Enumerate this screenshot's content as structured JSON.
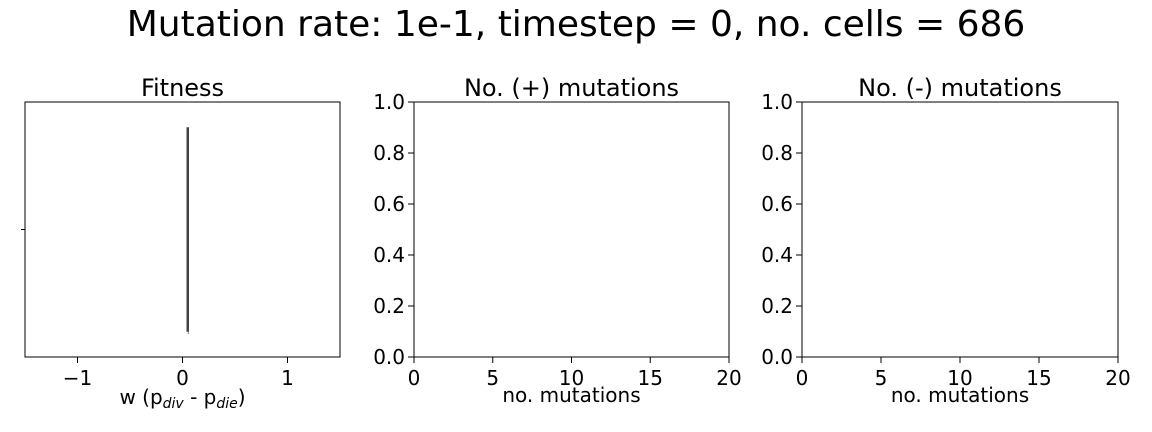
{
  "figure": {
    "suptitle": "Mutation rate: 1e-1, timestep = 0, no. cells = 686"
  },
  "chart_data": [
    {
      "type": "violin",
      "title": "Fitness",
      "xlabel_main": "w (p",
      "xlabel_sub1": "div",
      "xlabel_mid": " - p",
      "xlabel_sub2": "die",
      "xlabel_end": ")",
      "ylabel": "",
      "xlim": [
        -1.5,
        1.5
      ],
      "xticks": [
        -1,
        0,
        1
      ],
      "xtick_labels": [
        "−1",
        "0",
        "1"
      ],
      "yticks": [],
      "distribution": {
        "x_center": 0.05,
        "y_top": 0.9,
        "y_bottom": 0.1,
        "y_whisker_low": 0.09,
        "width": 0.012
      },
      "line_color": "#444444"
    },
    {
      "type": "histogram",
      "title": "No. (+) mutations",
      "xlabel": "no. mutations",
      "ylabel": "",
      "xlim": [
        0,
        20
      ],
      "ylim": [
        0,
        1
      ],
      "xticks": [
        0,
        5,
        10,
        15,
        20
      ],
      "xtick_labels": [
        "0",
        "5",
        "10",
        "15",
        "20"
      ],
      "yticks": [
        0,
        0.2,
        0.4,
        0.6,
        0.8,
        1.0
      ],
      "ytick_labels": [
        "0.0",
        "0.2",
        "0.4",
        "0.6",
        "0.8",
        "1.0"
      ],
      "values": []
    },
    {
      "type": "histogram",
      "title": "No. (-) mutations",
      "xlabel": "no. mutations",
      "ylabel": "",
      "xlim": [
        0,
        20
      ],
      "ylim": [
        0,
        1
      ],
      "xticks": [
        0,
        5,
        10,
        15,
        20
      ],
      "xtick_labels": [
        "0",
        "5",
        "10",
        "15",
        "20"
      ],
      "yticks": [
        0,
        0.2,
        0.4,
        0.6,
        0.8,
        1.0
      ],
      "ytick_labels": [
        "0.0",
        "0.2",
        "0.4",
        "0.6",
        "0.8",
        "1.0"
      ],
      "values": []
    }
  ]
}
